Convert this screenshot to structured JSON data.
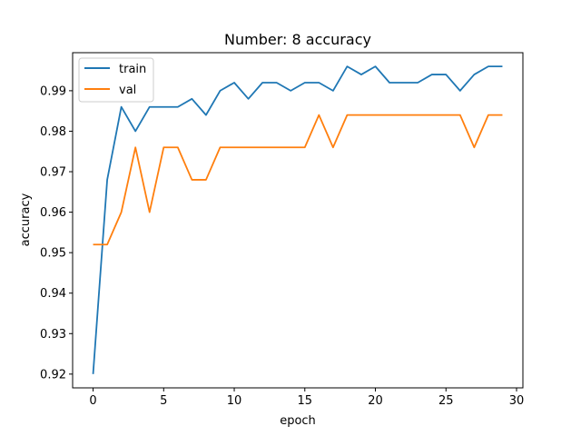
{
  "chart_data": {
    "type": "line",
    "title": "Number: 8 accuracy",
    "xlabel": "epoch",
    "ylabel": "accuracy",
    "xlim": [
      -1.45,
      30.45
    ],
    "ylim": [
      0.9166,
      0.9994
    ],
    "xticks": [
      0,
      5,
      10,
      15,
      20,
      25,
      30
    ],
    "xtick_labels": [
      "0",
      "5",
      "10",
      "15",
      "20",
      "25",
      "30"
    ],
    "yticks": [
      0.92,
      0.93,
      0.94,
      0.95,
      0.96,
      0.97,
      0.98,
      0.99
    ],
    "ytick_labels": [
      "0.92",
      "0.93",
      "0.94",
      "0.95",
      "0.96",
      "0.97",
      "0.98",
      "0.99"
    ],
    "grid": false,
    "legend_position": "top-left",
    "x": [
      0,
      1,
      2,
      3,
      4,
      5,
      6,
      7,
      8,
      9,
      10,
      11,
      12,
      13,
      14,
      15,
      16,
      17,
      18,
      19,
      20,
      21,
      22,
      23,
      24,
      25,
      26,
      27,
      28,
      29
    ],
    "series": [
      {
        "name": "train",
        "color": "#1f77b4",
        "values": [
          0.92,
          0.968,
          0.986,
          0.98,
          0.986,
          0.986,
          0.986,
          0.988,
          0.984,
          0.99,
          0.992,
          0.988,
          0.992,
          0.992,
          0.99,
          0.992,
          0.992,
          0.99,
          0.996,
          0.994,
          0.996,
          0.992,
          0.992,
          0.992,
          0.994,
          0.994,
          0.99,
          0.994,
          0.996,
          0.996
        ]
      },
      {
        "name": "val",
        "color": "#ff7f0e",
        "values": [
          0.952,
          0.952,
          0.96,
          0.976,
          0.96,
          0.976,
          0.976,
          0.968,
          0.968,
          0.976,
          0.976,
          0.976,
          0.976,
          0.976,
          0.976,
          0.976,
          0.984,
          0.976,
          0.984,
          0.984,
          0.984,
          0.984,
          0.984,
          0.984,
          0.984,
          0.984,
          0.984,
          0.976,
          0.984,
          0.984
        ]
      }
    ]
  }
}
